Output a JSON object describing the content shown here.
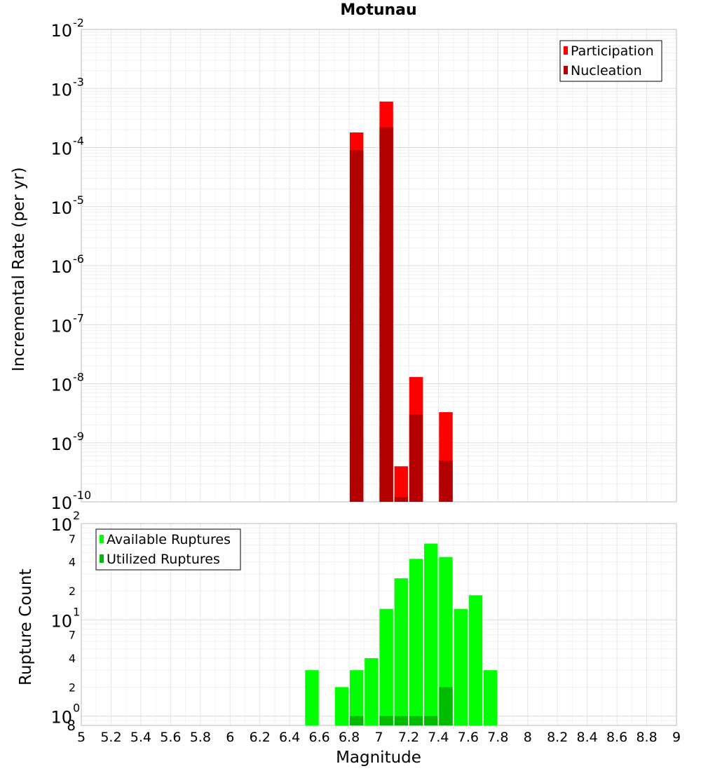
{
  "chart_data": [
    {
      "type": "bar",
      "title": "Motunau",
      "xlabel": "",
      "ylabel": "Incremental Rate (per yr)",
      "yscale": "log",
      "ylim": [
        1e-10,
        0.01
      ],
      "xlim": [
        5,
        9
      ],
      "grid": true,
      "legend_position": "top-right",
      "bin_width": 0.1,
      "series": [
        {
          "name": "Participation",
          "color": "#ff0000",
          "points": [
            [
              6.85,
              0.00018
            ],
            [
              7.05,
              0.0006
            ],
            [
              7.15,
              4e-10
            ],
            [
              7.25,
              1.3e-08
            ],
            [
              7.45,
              3.3e-09
            ]
          ]
        },
        {
          "name": "Nucleation",
          "color": "#b30000",
          "points": [
            [
              6.85,
              9e-05
            ],
            [
              7.05,
              0.00022
            ],
            [
              7.15,
              1.2e-10
            ],
            [
              7.25,
              3e-09
            ],
            [
              7.45,
              5e-10
            ]
          ]
        }
      ],
      "y_ticks": [
        "10^-10",
        "10^-9",
        "10^-8",
        "10^-7",
        "10^-6",
        "10^-5",
        "10^-4",
        "10^-3",
        "10^-2"
      ]
    },
    {
      "type": "bar",
      "xlabel": "Magnitude",
      "ylabel": "Rupture Count",
      "yscale": "log",
      "ylim": [
        0.8,
        100
      ],
      "xlim": [
        5,
        9
      ],
      "grid": true,
      "legend_position": "top-left",
      "bin_width": 0.1,
      "series": [
        {
          "name": "Available Ruptures",
          "color": "#00ff00",
          "points": [
            [
              6.55,
              3
            ],
            [
              6.75,
              2
            ],
            [
              6.85,
              3
            ],
            [
              6.95,
              4
            ],
            [
              7.05,
              13
            ],
            [
              7.15,
              27
            ],
            [
              7.25,
              43
            ],
            [
              7.35,
              62
            ],
            [
              7.45,
              45
            ],
            [
              7.55,
              13
            ],
            [
              7.65,
              18
            ],
            [
              7.75,
              3
            ]
          ]
        },
        {
          "name": "Utilized Ruptures",
          "color": "#00bb00",
          "points": [
            [
              6.85,
              1
            ],
            [
              7.05,
              1
            ],
            [
              7.15,
              1
            ],
            [
              7.25,
              1
            ],
            [
              7.35,
              1
            ],
            [
              7.45,
              2
            ]
          ]
        }
      ],
      "y_tick_labels": [
        {
          "v": 1,
          "main": "10",
          "exp": "0"
        },
        {
          "v": 2,
          "main": "2"
        },
        {
          "v": 4,
          "main": "4"
        },
        {
          "v": 7,
          "main": "7"
        },
        {
          "v": 10,
          "main": "10",
          "exp": "1"
        },
        {
          "v": 20,
          "main": "2"
        },
        {
          "v": 40,
          "main": "4"
        },
        {
          "v": 70,
          "main": "7"
        },
        {
          "v": 100,
          "main": "10",
          "exp": "2"
        }
      ],
      "y_extra_label": "8",
      "x_ticks": [
        "5",
        "5.2",
        "5.4",
        "5.6",
        "5.8",
        "6",
        "6.2",
        "6.4",
        "6.6",
        "6.8",
        "7",
        "7.2",
        "7.4",
        "7.6",
        "7.8",
        "8",
        "8.2",
        "8.4",
        "8.6",
        "8.8",
        "9"
      ]
    }
  ]
}
